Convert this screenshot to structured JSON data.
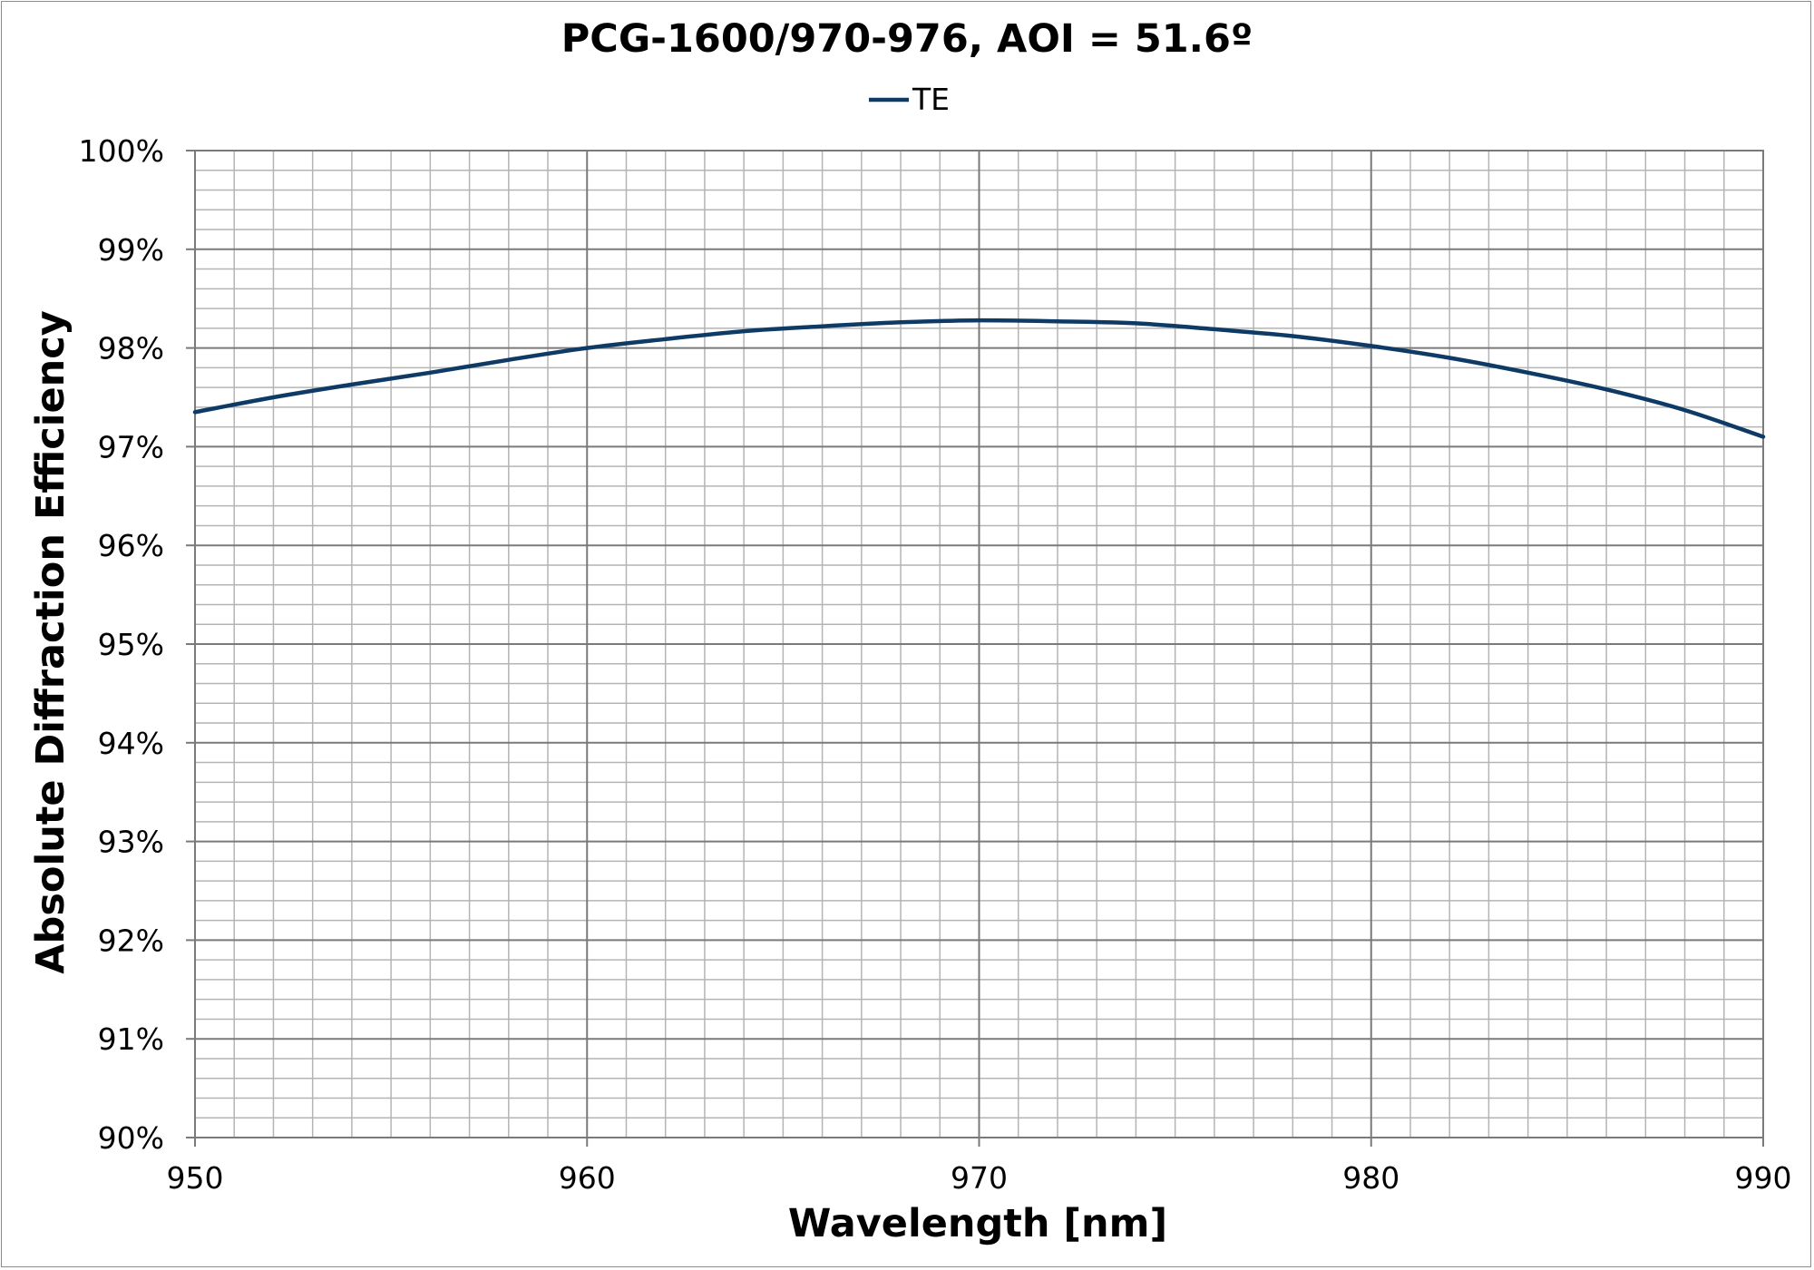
{
  "chart_data": {
    "type": "line",
    "title": "PCG-1600/970-976, AOI = 51.6º",
    "xlabel": "Wavelength [nm]",
    "ylabel": "Absolute Diffraction Efficiency",
    "xlim": [
      950,
      990
    ],
    "ylim": [
      90,
      100
    ],
    "x_ticks": [
      950,
      960,
      970,
      980,
      990
    ],
    "x_tick_labels": [
      "950",
      "960",
      "970",
      "980",
      "990"
    ],
    "y_ticks": [
      90,
      91,
      92,
      93,
      94,
      95,
      96,
      97,
      98,
      99,
      100
    ],
    "y_tick_labels": [
      "90%",
      "91%",
      "92%",
      "93%",
      "94%",
      "95%",
      "96%",
      "97%",
      "98%",
      "99%",
      "100%"
    ],
    "x_minor_step": 1,
    "y_minor_step": 0.2,
    "grid": true,
    "legend_position": "top-center",
    "x": [
      950,
      952,
      954,
      956,
      958,
      960,
      962,
      964,
      966,
      968,
      970,
      972,
      974,
      976,
      978,
      980,
      982,
      984,
      986,
      988,
      990
    ],
    "series": [
      {
        "name": "TE",
        "color": "#0e3a66",
        "values": [
          97.35,
          97.5,
          97.63,
          97.75,
          97.88,
          98.0,
          98.09,
          98.17,
          98.22,
          98.26,
          98.28,
          98.27,
          98.25,
          98.19,
          98.12,
          98.02,
          97.9,
          97.75,
          97.58,
          97.37,
          97.1
        ]
      }
    ]
  }
}
